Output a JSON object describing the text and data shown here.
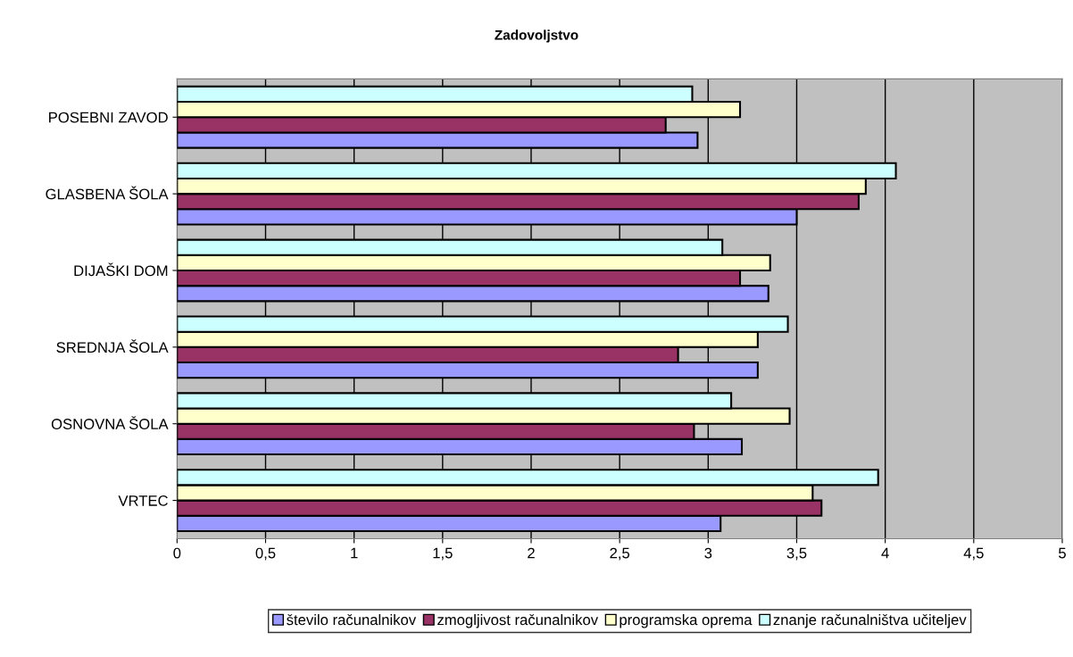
{
  "chart_data": {
    "type": "bar",
    "orientation": "horizontal",
    "title": "Zadovoljstvo",
    "categories": [
      "POSEBNI ZAVOD",
      "GLASBENA ŠOLA",
      "DIJAŠKI DOM",
      "SREDNJA ŠOLA",
      "OSNOVNA ŠOLA",
      "VRTEC"
    ],
    "series": [
      {
        "name": "število računalnikov",
        "color": "#9999ff",
        "values": [
          2.94,
          3.5,
          3.34,
          3.28,
          3.19,
          3.07
        ]
      },
      {
        "name": "zmogljivost računalnikov",
        "color": "#993366",
        "values": [
          2.76,
          3.85,
          3.18,
          2.83,
          2.92,
          3.64
        ]
      },
      {
        "name": "programska oprema",
        "color": "#ffffcc",
        "values": [
          3.18,
          3.89,
          3.35,
          3.28,
          3.46,
          3.59
        ]
      },
      {
        "name": "znanje računalništva učiteljev",
        "color": "#ccffff",
        "values": [
          2.91,
          4.06,
          3.08,
          3.45,
          3.13,
          3.96
        ]
      }
    ],
    "xlim": [
      0,
      5
    ],
    "xticks": [
      0,
      {
        "value": 0.5,
        "label": "0,5"
      },
      1,
      {
        "value": 1.5,
        "label": "1,5"
      },
      2,
      {
        "value": 2.5,
        "label": "2,5"
      },
      3,
      {
        "value": 3.5,
        "label": "3,5"
      },
      4,
      {
        "value": 4.5,
        "label": "4,5"
      },
      5
    ],
    "grid": "x",
    "legend": "bottom"
  }
}
